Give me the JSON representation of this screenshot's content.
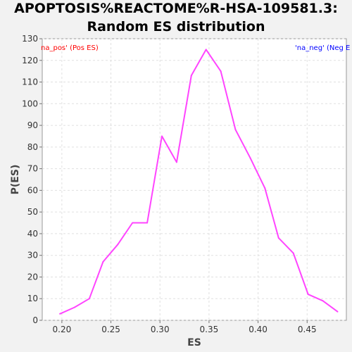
{
  "chart_data": {
    "type": "line",
    "title_lines": [
      "APOPTOSIS%REACTOME%R-HSA-109581.3:",
      "Random ES distribution"
    ],
    "xlabel": "ES",
    "ylabel": "P(ES)",
    "xlim": [
      0.18,
      0.49
    ],
    "ylim": [
      0,
      130
    ],
    "x_ticks": [
      0.2,
      0.25,
      0.3,
      0.35,
      0.4,
      0.45
    ],
    "x_tick_labels": [
      "0.20",
      "0.25",
      "0.30",
      "0.35",
      "0.40",
      "0.45"
    ],
    "y_ticks": [
      0,
      10,
      20,
      30,
      40,
      50,
      60,
      70,
      80,
      90,
      100,
      110,
      120,
      130
    ],
    "y_tick_labels": [
      "0",
      "10",
      "20",
      "30",
      "40",
      "50",
      "60",
      "70",
      "80",
      "90",
      "100",
      "110",
      "120",
      "130"
    ],
    "grid": true,
    "annotations": {
      "pos_label": "na_pos' (Pos ES)",
      "neg_label": "'na_neg' (Neg E"
    },
    "series": [
      {
        "color": "#ff44ff",
        "x": [
          0.198,
          0.213,
          0.228,
          0.242,
          0.257,
          0.272,
          0.287,
          0.302,
          0.317,
          0.332,
          0.347,
          0.362,
          0.377,
          0.392,
          0.407,
          0.421,
          0.436,
          0.451,
          0.466,
          0.481
        ],
        "y": [
          3,
          6,
          10,
          27,
          35,
          45,
          45,
          85,
          73,
          113,
          125,
          115,
          88,
          75,
          61,
          38,
          31,
          12,
          9,
          4
        ]
      }
    ]
  },
  "colors": {
    "background": "#f2f2f2",
    "plot_background": "#ffffff",
    "grid": "#e0e0e0",
    "pos_label": "#ff0000",
    "neg_label": "#0000ff",
    "axis_text": "#333333"
  }
}
